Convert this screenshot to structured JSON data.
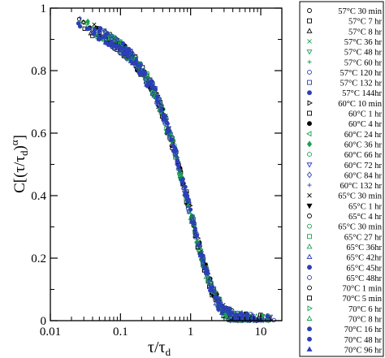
{
  "chart_data": {
    "type": "scatter",
    "title": "",
    "xlabel": "τ/τ",
    "xlabel_sub": "d",
    "ylabel": "C[(τ/τ",
    "ylabel_sub": "d",
    "ylabel_tail": ")",
    "ylabel_sup": "α",
    "ylabel_close": "]",
    "x_scale": "log",
    "xlim": [
      0.01,
      20
    ],
    "ylim": [
      0,
      1
    ],
    "x_ticks": [
      0.01,
      0.1,
      1,
      10
    ],
    "x_tick_labels": [
      "0.01",
      "0.1",
      "1",
      "10"
    ],
    "y_ticks": [
      0,
      0.2,
      0.4,
      0.6,
      0.8,
      1
    ],
    "y_tick_labels": [
      "0",
      "0.2",
      "0.4",
      "0.6",
      "0.8",
      "1"
    ],
    "grid": false,
    "legend_position": "right, outside plot",
    "master_curve": {
      "x": [
        0.025,
        0.04,
        0.06,
        0.1,
        0.15,
        0.2,
        0.3,
        0.4,
        0.5,
        0.6,
        0.7,
        0.8,
        1.0,
        1.2,
        1.5,
        2.0,
        2.5,
        3.0,
        4.0,
        6.0,
        10.0,
        15.0
      ],
      "y": [
        0.955,
        0.93,
        0.91,
        0.875,
        0.84,
        0.8,
        0.735,
        0.665,
        0.595,
        0.54,
        0.48,
        0.43,
        0.345,
        0.27,
        0.19,
        0.1,
        0.055,
        0.03,
        0.012,
        0.004,
        0.002,
        0.001
      ]
    },
    "series": [
      {
        "name": "57°C 30 min",
        "color": "#000000",
        "marker": "circle-open"
      },
      {
        "name": "57°C 7 hr",
        "color": "#000000",
        "marker": "square-open"
      },
      {
        "name": "57°C 8 hr",
        "color": "#000000",
        "marker": "triangle-open"
      },
      {
        "name": "57°C 36 hr",
        "color": "#1aa050",
        "marker": "x"
      },
      {
        "name": "57°C 48 hr",
        "color": "#1aa050",
        "marker": "tri-down-open"
      },
      {
        "name": "57°C 60 hr",
        "color": "#1aa050",
        "marker": "plus"
      },
      {
        "name": "57°C 120 hr",
        "color": "#2c3fb8",
        "marker": "circle-open"
      },
      {
        "name": "57°C 132 hr",
        "color": "#2c3fb8",
        "marker": "square-open"
      },
      {
        "name": "57°C 144hr",
        "color": "#2c3fb8",
        "marker": "circle-filled"
      },
      {
        "name": "60°C 10 min",
        "color": "#000000",
        "marker": "tri-right-open"
      },
      {
        "name": "60°C 1 hr",
        "color": "#000000",
        "marker": "square-open"
      },
      {
        "name": "60°C 4 hr",
        "color": "#000000",
        "marker": "circle-filled"
      },
      {
        "name": "60°C 24 hr",
        "color": "#1aa050",
        "marker": "tri-left-open"
      },
      {
        "name": "60°C 36 hr",
        "color": "#1aa050",
        "marker": "diamond-filled"
      },
      {
        "name": "60°C 66 hr",
        "color": "#1aa050",
        "marker": "circle-open"
      },
      {
        "name": "60°C 72 hr",
        "color": "#2c3fb8",
        "marker": "tri-down-open"
      },
      {
        "name": "60°C 84 hr",
        "color": "#2c3fb8",
        "marker": "diamond-open"
      },
      {
        "name": "60°C 132 hr",
        "color": "#2c3fb8",
        "marker": "plus"
      },
      {
        "name": "65°C 30 min",
        "color": "#000000",
        "marker": "x"
      },
      {
        "name": "65°C 1 hr",
        "color": "#000000",
        "marker": "tri-down-filled"
      },
      {
        "name": "65°C 4 hr",
        "color": "#000000",
        "marker": "circle-open"
      },
      {
        "name": "65°C 30 min",
        "color": "#1aa050",
        "marker": "circle-open"
      },
      {
        "name": "65°C 27 hr",
        "color": "#1aa050",
        "marker": "square-open"
      },
      {
        "name": "65°C 36hr",
        "color": "#1aa050",
        "marker": "triangle-open"
      },
      {
        "name": "65°C 42hr",
        "color": "#2c3fb8",
        "marker": "triangle-open"
      },
      {
        "name": "65°C 45hr",
        "color": "#2c3fb8",
        "marker": "circle-filled"
      },
      {
        "name": "65°C 48hr",
        "color": "#2c3fb8",
        "marker": "circle-open"
      },
      {
        "name": "70°C 1 min",
        "color": "#000000",
        "marker": "circle-open"
      },
      {
        "name": "70°C 5 min",
        "color": "#000000",
        "marker": "square-open"
      },
      {
        "name": "70°C 6 hr",
        "color": "#1aa050",
        "marker": "tri-right-open"
      },
      {
        "name": "70°C 8 hr",
        "color": "#1aa050",
        "marker": "triangle-open"
      },
      {
        "name": "70°C 16 hr",
        "color": "#2c3fb8",
        "marker": "circle-filled"
      },
      {
        "name": "70°C 48 hr",
        "color": "#2c3fb8",
        "marker": "circle-filled"
      },
      {
        "name": "70°C 96 hr",
        "color": "#2c3fb8",
        "marker": "triangle-filled"
      }
    ]
  }
}
